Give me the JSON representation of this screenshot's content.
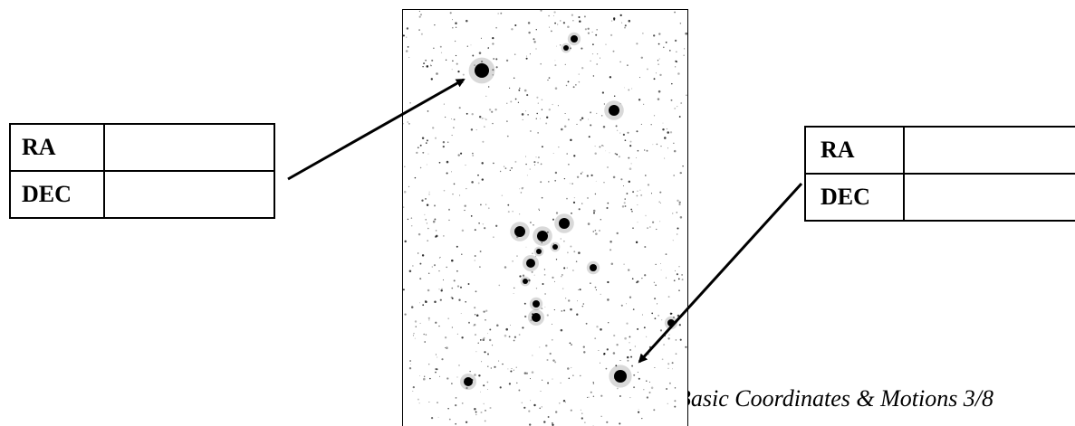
{
  "left_table": {
    "rows": [
      {
        "label": "RA",
        "value": ""
      },
      {
        "label": "DEC",
        "value": ""
      }
    ]
  },
  "right_table": {
    "rows": [
      {
        "label": "RA",
        "value": ""
      },
      {
        "label": "DEC",
        "value": ""
      }
    ]
  },
  "footer": {
    "text": "Basic Coordinates & Motions 3/8"
  },
  "image": {
    "description_icon": "star-field-image"
  }
}
